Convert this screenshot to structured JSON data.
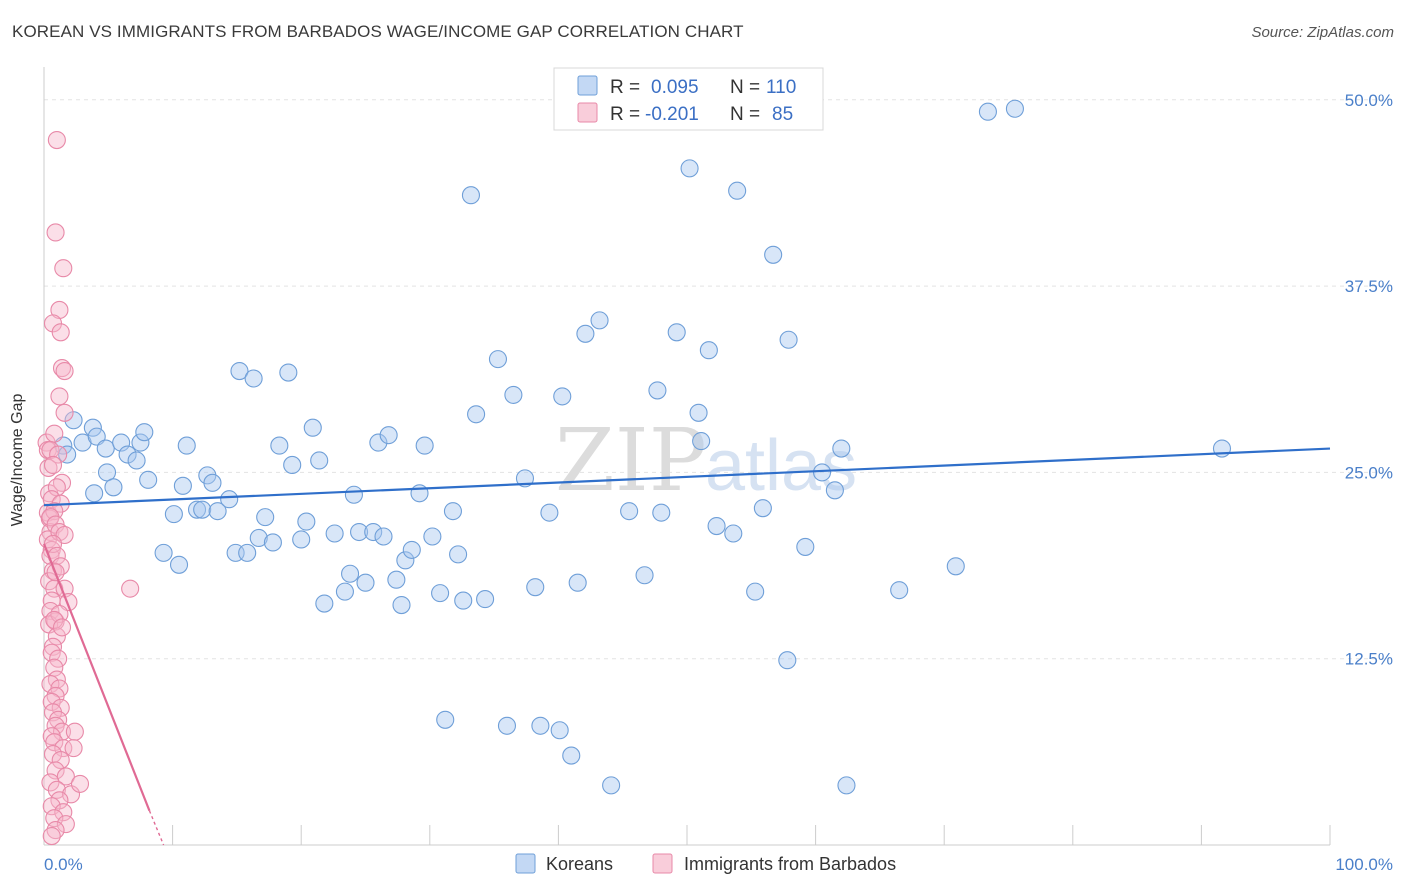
{
  "title": "KOREAN VS IMMIGRANTS FROM BARBADOS WAGE/INCOME GAP CORRELATION CHART",
  "source": "Source: ZipAtlas.com",
  "watermark": {
    "part1": "ZIP",
    "part2": "atlas"
  },
  "legend": {
    "rows": [
      {
        "r_label": "R =",
        "r_value": "0.095",
        "n_label": "N =",
        "n_value": "110",
        "color": "#a9c8ef",
        "stroke": "#6f9fd8"
      },
      {
        "r_label": "R =",
        "r_value": "-0.201",
        "n_label": "N =",
        "n_value": "85",
        "color": "#f6b8cb",
        "stroke": "#e889a8"
      }
    ]
  },
  "bottom_legend": [
    {
      "label": "Koreans",
      "color": "#a9c8ef",
      "stroke": "#6f9fd8"
    },
    {
      "label": "Immigrants from Barbados",
      "color": "#f6b8cb",
      "stroke": "#e889a8"
    }
  ],
  "chart_data": {
    "type": "scatter",
    "ylabel": "Wage/Income Gap",
    "xlim": [
      0,
      100
    ],
    "ylim": [
      0,
      52
    ],
    "x_tick_labels": [
      "0.0%",
      "100.0%"
    ],
    "y_ticks": [
      {
        "value": 12.5,
        "label": "12.5%"
      },
      {
        "value": 25,
        "label": "25.0%"
      },
      {
        "value": 37.5,
        "label": "37.5%"
      },
      {
        "value": 50,
        "label": "50.0%"
      }
    ],
    "grid": true,
    "series": [
      {
        "name": "Koreans",
        "color": "#a9c8ef",
        "stroke": "#6f9fd8",
        "line_color": "#2f6fca",
        "trend": {
          "x": [
            0,
            100
          ],
          "y": [
            22.8,
            26.6
          ]
        },
        "points": [
          [
            1.5,
            26.8
          ],
          [
            1.8,
            26.2
          ],
          [
            2.3,
            28.5
          ],
          [
            3,
            27
          ],
          [
            3.8,
            28
          ],
          [
            4.1,
            27.4
          ],
          [
            3.9,
            23.6
          ],
          [
            4.8,
            26.6
          ],
          [
            4.9,
            25
          ],
          [
            5.4,
            24
          ],
          [
            6,
            27
          ],
          [
            6.5,
            26.2
          ],
          [
            7.2,
            25.8
          ],
          [
            7.5,
            27
          ],
          [
            7.8,
            27.7
          ],
          [
            8.1,
            24.5
          ],
          [
            9.3,
            19.6
          ],
          [
            10.1,
            22.2
          ],
          [
            10.5,
            18.8
          ],
          [
            10.8,
            24.1
          ],
          [
            11.1,
            26.8
          ],
          [
            11.9,
            22.5
          ],
          [
            12.3,
            22.5
          ],
          [
            12.7,
            24.8
          ],
          [
            13.1,
            24.3
          ],
          [
            13.5,
            22.4
          ],
          [
            14.4,
            23.2
          ],
          [
            14.9,
            19.6
          ],
          [
            15.2,
            31.8
          ],
          [
            15.8,
            19.6
          ],
          [
            16.3,
            31.3
          ],
          [
            16.7,
            20.6
          ],
          [
            17.2,
            22
          ],
          [
            17.8,
            20.3
          ],
          [
            18.3,
            26.8
          ],
          [
            19,
            31.7
          ],
          [
            19.3,
            25.5
          ],
          [
            20,
            20.5
          ],
          [
            20.4,
            21.7
          ],
          [
            20.9,
            28
          ],
          [
            21.4,
            25.8
          ],
          [
            21.8,
            16.2
          ],
          [
            22.6,
            20.9
          ],
          [
            23.4,
            17
          ],
          [
            23.8,
            18.2
          ],
          [
            24.1,
            23.5
          ],
          [
            24.5,
            21
          ],
          [
            25,
            17.6
          ],
          [
            25.6,
            21
          ],
          [
            26,
            27
          ],
          [
            26.4,
            20.7
          ],
          [
            26.8,
            27.5
          ],
          [
            27.4,
            17.8
          ],
          [
            27.8,
            16.1
          ],
          [
            28.1,
            19.1
          ],
          [
            28.6,
            19.8
          ],
          [
            29.2,
            23.6
          ],
          [
            29.6,
            26.8
          ],
          [
            30.2,
            20.7
          ],
          [
            30.8,
            16.9
          ],
          [
            31.2,
            8.4
          ],
          [
            31.8,
            22.4
          ],
          [
            32.2,
            19.5
          ],
          [
            32.6,
            16.4
          ],
          [
            33.2,
            43.6
          ],
          [
            33.6,
            28.9
          ],
          [
            34.3,
            16.5
          ],
          [
            35.3,
            32.6
          ],
          [
            36,
            8
          ],
          [
            36.5,
            30.2
          ],
          [
            37.4,
            24.6
          ],
          [
            38.2,
            17.3
          ],
          [
            38.6,
            8
          ],
          [
            39.3,
            22.3
          ],
          [
            40.1,
            7.7
          ],
          [
            40.3,
            30.1
          ],
          [
            41,
            6
          ],
          [
            41.5,
            17.6
          ],
          [
            42.1,
            34.3
          ],
          [
            43.2,
            35.2
          ],
          [
            44.1,
            4
          ],
          [
            45.5,
            22.4
          ],
          [
            46.7,
            18.1
          ],
          [
            47.7,
            30.5
          ],
          [
            48,
            22.3
          ],
          [
            49.2,
            34.4
          ],
          [
            50.2,
            45.4
          ],
          [
            50.9,
            29
          ],
          [
            51.1,
            27.1
          ],
          [
            51.7,
            33.2
          ],
          [
            52.3,
            21.4
          ],
          [
            53.6,
            20.9
          ],
          [
            53.9,
            43.9
          ],
          [
            55.3,
            17
          ],
          [
            55.9,
            22.6
          ],
          [
            56.7,
            39.6
          ],
          [
            57.8,
            12.4
          ],
          [
            57.9,
            33.9
          ],
          [
            59.2,
            20
          ],
          [
            60.5,
            25
          ],
          [
            61.5,
            23.8
          ],
          [
            62,
            26.6
          ],
          [
            62.4,
            4
          ],
          [
            66.5,
            17.1
          ],
          [
            70.9,
            18.7
          ],
          [
            73.4,
            49.2
          ],
          [
            75.5,
            49.4
          ],
          [
            91.6,
            26.6
          ]
        ]
      },
      {
        "name": "Immigrants from Barbados",
        "color": "#f6b8cb",
        "stroke": "#e889a8",
        "line_color": "#e06a94",
        "trend": {
          "x": [
            0,
            8.2
          ],
          "y": [
            20.2,
            2.3
          ]
        },
        "trend_dashed": {
          "x": [
            8.2,
            9.3
          ],
          "y": [
            2.3,
            0
          ]
        },
        "points": [
          [
            0.2,
            27
          ],
          [
            0.3,
            26.5
          ],
          [
            0.35,
            25.3
          ],
          [
            0.4,
            23.6
          ],
          [
            0.3,
            22.3
          ],
          [
            0.45,
            21.9
          ],
          [
            0.5,
            21
          ],
          [
            0.3,
            20.5
          ],
          [
            0.6,
            19.8
          ],
          [
            0.5,
            19.4
          ],
          [
            0.7,
            18.4
          ],
          [
            0.4,
            17.7
          ],
          [
            0.8,
            17.2
          ],
          [
            0.6,
            16.4
          ],
          [
            0.5,
            15.7
          ],
          [
            0.9,
            15
          ],
          [
            0.4,
            14.8
          ],
          [
            1,
            14
          ],
          [
            0.7,
            13.3
          ],
          [
            0.6,
            12.9
          ],
          [
            1.1,
            12.5
          ],
          [
            0.8,
            11.9
          ],
          [
            1,
            11.1
          ],
          [
            0.5,
            10.8
          ],
          [
            1.2,
            10.5
          ],
          [
            0.9,
            10
          ],
          [
            0.6,
            9.6
          ],
          [
            1.3,
            9.2
          ],
          [
            0.7,
            8.9
          ],
          [
            1.1,
            8.4
          ],
          [
            0.9,
            8
          ],
          [
            1.4,
            7.6
          ],
          [
            0.6,
            7.3
          ],
          [
            0.8,
            6.9
          ],
          [
            1.5,
            6.5
          ],
          [
            0.7,
            6.1
          ],
          [
            1.3,
            5.7
          ],
          [
            0.9,
            5
          ],
          [
            1.7,
            4.6
          ],
          [
            0.5,
            4.2
          ],
          [
            1,
            3.7
          ],
          [
            2.1,
            3.4
          ],
          [
            1.2,
            3
          ],
          [
            0.6,
            2.6
          ],
          [
            1.5,
            2.2
          ],
          [
            0.8,
            1.8
          ],
          [
            1.7,
            1.4
          ],
          [
            0.9,
            1
          ],
          [
            0.6,
            0.6
          ],
          [
            1,
            47.3
          ],
          [
            0.9,
            41.1
          ],
          [
            1.5,
            38.7
          ],
          [
            1.2,
            35.9
          ],
          [
            0.7,
            35
          ],
          [
            1.3,
            34.4
          ],
          [
            1.4,
            32
          ],
          [
            1.6,
            31.8
          ],
          [
            1.2,
            30.1
          ],
          [
            1.6,
            29
          ],
          [
            0.8,
            27.6
          ],
          [
            0.5,
            26.5
          ],
          [
            1.1,
            26.2
          ],
          [
            0.7,
            25.5
          ],
          [
            1.4,
            24.3
          ],
          [
            1,
            24
          ],
          [
            0.6,
            23.2
          ],
          [
            1.3,
            22.9
          ],
          [
            0.8,
            22.4
          ],
          [
            0.5,
            22
          ],
          [
            0.9,
            21.5
          ],
          [
            1.2,
            21
          ],
          [
            1.6,
            20.8
          ],
          [
            0.7,
            20.2
          ],
          [
            1,
            19.4
          ],
          [
            1.3,
            18.7
          ],
          [
            0.9,
            18.3
          ],
          [
            1.6,
            17.2
          ],
          [
            1.9,
            16.3
          ],
          [
            1.2,
            15.5
          ],
          [
            0.8,
            15.1
          ],
          [
            1.4,
            14.6
          ],
          [
            6.7,
            17.2
          ],
          [
            2.4,
            7.6
          ],
          [
            2.3,
            6.5
          ],
          [
            2.8,
            4.1
          ]
        ]
      }
    ]
  }
}
